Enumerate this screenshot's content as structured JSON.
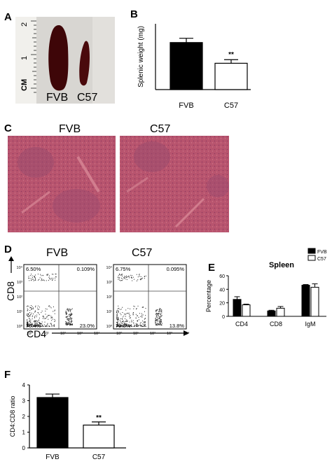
{
  "panels": {
    "A": "A",
    "B": "B",
    "C": "C",
    "D": "D",
    "E": "E",
    "F": "F"
  },
  "panel_a": {
    "ruler_unit": "CM",
    "ruler_numbers": [
      "2",
      "1"
    ],
    "labels": [
      "FVB",
      "C57"
    ]
  },
  "panel_c": {
    "labels": [
      "FVB",
      "C57"
    ],
    "colors": {
      "tissue": "#b8546e",
      "follicle": "#9b4a6e",
      "light": "#d98896"
    }
  },
  "panel_d": {
    "titles": [
      "FVB",
      "C57"
    ],
    "ylabel": "CD8",
    "xlabel": "CD4",
    "tick_labels": [
      "10⁰",
      "10¹",
      "10²",
      "10³",
      "10⁴"
    ],
    "fvb_quadrants": {
      "ul": "6.50%",
      "ur": "0.109%",
      "ll": "70.4%",
      "lr": "23.0%"
    },
    "c57_quadrants": {
      "ul": "6.75%",
      "ur": "0.095%",
      "ll": "79.3%",
      "lr": "13.8%"
    }
  },
  "chart_data": [
    {
      "id": "B",
      "type": "bar",
      "categories": [
        "FVB",
        "C57"
      ],
      "values": [
        143,
        80
      ],
      "errors": [
        13,
        11
      ],
      "fills": [
        "#000000",
        "#ffffff"
      ],
      "ylabel": "Splenic weight (mg)",
      "ylim": [
        0,
        200
      ],
      "significance": "**"
    },
    {
      "id": "E",
      "type": "bar",
      "title": "Spleen",
      "categories": [
        "CD4",
        "CD8",
        "IgM"
      ],
      "series": [
        {
          "name": "FVB",
          "values": [
            25,
            8,
            46
          ],
          "errors": [
            4,
            1,
            1
          ],
          "fill": "#000000"
        },
        {
          "name": "C57",
          "values": [
            17,
            12,
            43
          ],
          "errors": [
            1,
            2.5,
            5
          ],
          "fill": "#ffffff"
        }
      ],
      "ylabel": "Percentage",
      "ylim": [
        0,
        60
      ],
      "yticks": [
        "0",
        "20",
        "40",
        "60"
      ]
    },
    {
      "id": "F",
      "type": "bar",
      "categories": [
        "FVB",
        "C57"
      ],
      "values": [
        3.2,
        1.45
      ],
      "errors": [
        0.22,
        0.2
      ],
      "fills": [
        "#000000",
        "#ffffff"
      ],
      "ylabel": "CD4:CD8 ratio",
      "ylim": [
        0,
        4
      ],
      "yticks": [
        "0",
        "1",
        "2",
        "3",
        "4"
      ],
      "significance": "**"
    }
  ]
}
